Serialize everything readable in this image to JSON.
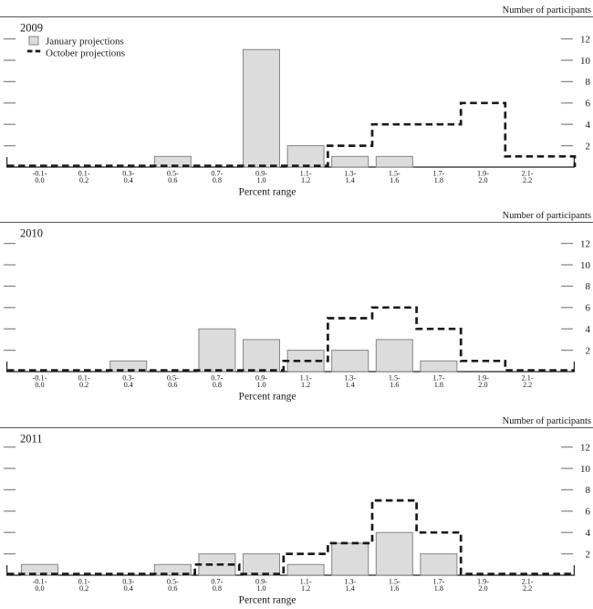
{
  "figure": {
    "note": "Number of participants",
    "xlabel": "Percent range",
    "legend": [
      {
        "key": "january",
        "label": "January projections"
      },
      {
        "key": "october",
        "label": "October projections"
      }
    ],
    "yticks": [
      2,
      4,
      6,
      8,
      10,
      12
    ]
  },
  "colors": {
    "bar_fill": "#dcdcdc",
    "bar_border": "#848484",
    "step_line": "#1a1a1a",
    "tick": "#8a8a8a",
    "axis": "#222222",
    "separator": "#555555",
    "text": "#1a1a1a"
  },
  "chart_data": [
    {
      "type": "bar",
      "year": "2009",
      "xlabel": "Percent range",
      "ylabel": "Number of participants",
      "ylim": [
        0,
        13
      ],
      "categories": [
        [
          "-0.1",
          "0.0"
        ],
        [
          "0.1",
          "0.2"
        ],
        [
          "0.3",
          "0.4"
        ],
        [
          "0.5",
          "0.6"
        ],
        [
          "0.7",
          "0.8"
        ],
        [
          "0.9",
          "1.0"
        ],
        [
          "1.1",
          "1.2"
        ],
        [
          "1.3",
          "1.4"
        ],
        [
          "1.5",
          "1.6"
        ],
        [
          "1.7",
          "1.8"
        ],
        [
          "1.9",
          "2.0"
        ],
        [
          "2.1",
          "2.2"
        ]
      ],
      "series": [
        {
          "name": "January projections",
          "style": "bar",
          "values": [
            0,
            0,
            0,
            1,
            0,
            11,
            2,
            1,
            1,
            0,
            0,
            0
          ]
        },
        {
          "name": "October projections",
          "style": "dashed-step",
          "values": [
            0,
            0,
            0,
            0,
            0,
            0,
            0,
            2,
            4,
            4,
            6,
            1
          ]
        }
      ]
    },
    {
      "type": "bar",
      "year": "2010",
      "xlabel": "Percent range",
      "ylabel": "Number of participants",
      "ylim": [
        0,
        13
      ],
      "categories": [
        [
          "-0.1",
          "0.0"
        ],
        [
          "0.1",
          "0.2"
        ],
        [
          "0.3",
          "0.4"
        ],
        [
          "0.5",
          "0.6"
        ],
        [
          "0.7",
          "0.8"
        ],
        [
          "0.9",
          "1.0"
        ],
        [
          "1.1",
          "1.2"
        ],
        [
          "1.3",
          "1.4"
        ],
        [
          "1.5",
          "1.6"
        ],
        [
          "1.7",
          "1.8"
        ],
        [
          "1.9",
          "2.0"
        ],
        [
          "2.1",
          "2.2"
        ]
      ],
      "series": [
        {
          "name": "January projections",
          "style": "bar",
          "values": [
            0,
            0,
            1,
            0,
            4,
            3,
            2,
            2,
            3,
            1,
            0,
            0
          ]
        },
        {
          "name": "October projections",
          "style": "dashed-step",
          "values": [
            0,
            0,
            0,
            0,
            0,
            0,
            1,
            5,
            6,
            4,
            1,
            0
          ]
        }
      ]
    },
    {
      "type": "bar",
      "year": "2011",
      "xlabel": "Percent range",
      "ylabel": "Number of participants",
      "ylim": [
        0,
        13
      ],
      "categories": [
        [
          "-0.1",
          "0.0"
        ],
        [
          "0.1",
          "0.2"
        ],
        [
          "0.3",
          "0.4"
        ],
        [
          "0.5",
          "0.6"
        ],
        [
          "0.7",
          "0.8"
        ],
        [
          "0.9",
          "1.0"
        ],
        [
          "1.1",
          "1.2"
        ],
        [
          "1.3",
          "1.4"
        ],
        [
          "1.5",
          "1.6"
        ],
        [
          "1.7",
          "1.8"
        ],
        [
          "1.9",
          "2.0"
        ],
        [
          "2.1",
          "2.2"
        ]
      ],
      "series": [
        {
          "name": "January projections",
          "style": "bar",
          "values": [
            1,
            0,
            0,
            1,
            2,
            2,
            1,
            3,
            4,
            2,
            0,
            0
          ]
        },
        {
          "name": "October projections",
          "style": "dashed-step",
          "values": [
            0,
            0,
            0,
            0,
            1,
            0,
            2,
            3,
            7,
            4,
            0,
            0
          ]
        }
      ]
    }
  ]
}
